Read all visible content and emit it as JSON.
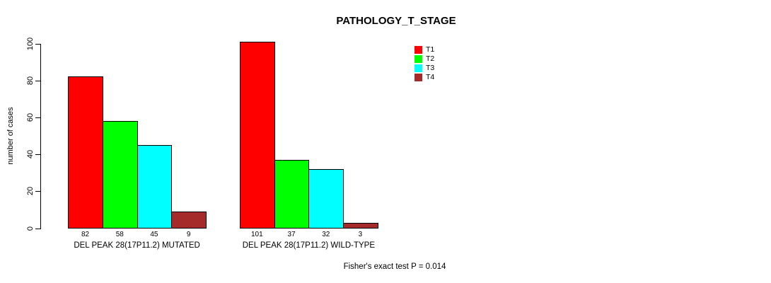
{
  "chart_data": {
    "type": "bar",
    "title": "PATHOLOGY_T_STAGE",
    "ylabel": "number of cases",
    "xlabel": "",
    "ylim": [
      0,
      100
    ],
    "yticks": [
      0,
      20,
      40,
      60,
      80,
      100
    ],
    "grid": false,
    "legend_position": "top-right",
    "categories": [
      "DEL PEAK 28(17P11.2) MUTATED",
      "DEL PEAK 28(17P11.2) WILD-TYPE"
    ],
    "series": [
      {
        "name": "T1",
        "color": "#FF0000",
        "values": [
          82,
          101
        ]
      },
      {
        "name": "T2",
        "color": "#00FF00",
        "values": [
          58,
          37
        ]
      },
      {
        "name": "T3",
        "color": "#00FFFF",
        "values": [
          45,
          32
        ]
      },
      {
        "name": "T4",
        "color": "#A52A2A",
        "values": [
          9,
          3
        ]
      }
    ],
    "bar_value_labels": [
      [
        82,
        58,
        45,
        9
      ],
      [
        101,
        37,
        32,
        3
      ]
    ],
    "annotation": "Fisher's exact test P = 0.014",
    "axis_color": "#000000",
    "background_color": "#FFFFFF"
  }
}
